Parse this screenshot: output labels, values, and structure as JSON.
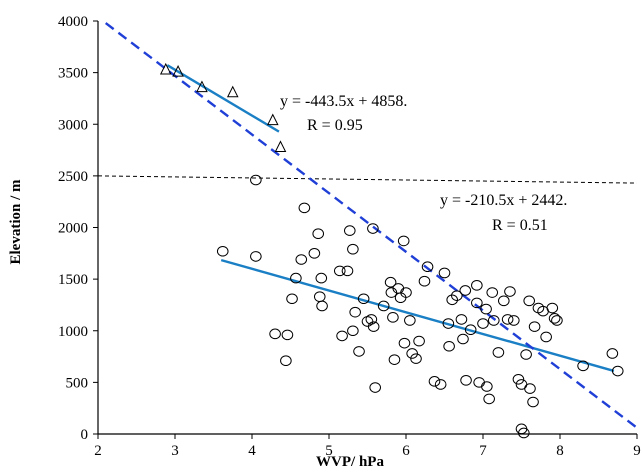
{
  "chart_data": {
    "type": "scatter",
    "xlabel": "WVP/ hPa",
    "ylabel": "Elevation / m",
    "xlim": [
      2,
      9
    ],
    "ylim": [
      0,
      4000
    ],
    "x_ticks": [
      "2",
      "3",
      "4",
      "5",
      "6",
      "7",
      "8",
      "9"
    ],
    "y_ticks": [
      "0",
      "500",
      "1000",
      "1500",
      "2000",
      "2500",
      "3000",
      "3500",
      "4000"
    ],
    "grid": false,
    "legend": "none",
    "colors": {
      "fit": "#1a7fc4",
      "envelope": "#1f3fd6",
      "markers": "#000000",
      "threshold": "#000000"
    },
    "series": [
      {
        "marker": "triangle",
        "points": [
          [
            2.88,
            3530
          ],
          [
            3.04,
            3510
          ],
          [
            3.35,
            3360
          ],
          [
            3.75,
            3310
          ],
          [
            4.27,
            3040
          ],
          [
            4.37,
            2780
          ]
        ]
      },
      {
        "marker": "circle",
        "points": [
          [
            3.62,
            1770
          ],
          [
            4.05,
            2460
          ],
          [
            4.05,
            1720
          ],
          [
            4.3,
            970
          ],
          [
            4.46,
            960
          ],
          [
            4.44,
            710
          ],
          [
            4.52,
            1310
          ],
          [
            4.57,
            1510
          ],
          [
            4.64,
            1690
          ],
          [
            4.68,
            2190
          ],
          [
            4.81,
            1750
          ],
          [
            4.86,
            1940
          ],
          [
            4.88,
            1330
          ],
          [
            4.9,
            1510
          ],
          [
            4.91,
            1240
          ],
          [
            5.14,
            1580
          ],
          [
            5.17,
            950
          ],
          [
            5.24,
            1580
          ],
          [
            5.27,
            1970
          ],
          [
            5.31,
            1790
          ],
          [
            5.31,
            1000
          ],
          [
            5.34,
            1180
          ],
          [
            5.39,
            800
          ],
          [
            5.45,
            1310
          ],
          [
            5.5,
            1090
          ],
          [
            5.55,
            1110
          ],
          [
            5.57,
            1990
          ],
          [
            5.58,
            1040
          ],
          [
            5.6,
            450
          ],
          [
            5.71,
            1240
          ],
          [
            5.8,
            1470
          ],
          [
            5.81,
            1370
          ],
          [
            5.83,
            1130
          ],
          [
            5.85,
            720
          ],
          [
            5.9,
            1410
          ],
          [
            5.93,
            1320
          ],
          [
            5.97,
            1870
          ],
          [
            5.98,
            880
          ],
          [
            6.0,
            1370
          ],
          [
            6.05,
            1100
          ],
          [
            6.08,
            780
          ],
          [
            6.13,
            730
          ],
          [
            6.17,
            900
          ],
          [
            6.24,
            1480
          ],
          [
            6.28,
            1620
          ],
          [
            6.37,
            510
          ],
          [
            6.45,
            480
          ],
          [
            6.5,
            1560
          ],
          [
            6.55,
            1070
          ],
          [
            6.56,
            850
          ],
          [
            6.6,
            1300
          ],
          [
            6.66,
            1340
          ],
          [
            6.72,
            1110
          ],
          [
            6.74,
            920
          ],
          [
            6.77,
            1390
          ],
          [
            6.78,
            520
          ],
          [
            6.84,
            1010
          ],
          [
            6.92,
            1440
          ],
          [
            6.92,
            1270
          ],
          [
            6.95,
            500
          ],
          [
            7.0,
            1070
          ],
          [
            7.04,
            1210
          ],
          [
            7.05,
            460
          ],
          [
            7.08,
            340
          ],
          [
            7.12,
            1370
          ],
          [
            7.14,
            1100
          ],
          [
            7.2,
            790
          ],
          [
            7.27,
            1290
          ],
          [
            7.32,
            1110
          ],
          [
            7.35,
            1380
          ],
          [
            7.4,
            1100
          ],
          [
            7.46,
            530
          ],
          [
            7.5,
            480
          ],
          [
            7.5,
            50
          ],
          [
            7.53,
            10
          ],
          [
            7.56,
            770
          ],
          [
            7.6,
            1290
          ],
          [
            7.61,
            440
          ],
          [
            7.65,
            310
          ],
          [
            7.67,
            1040
          ],
          [
            7.72,
            1220
          ],
          [
            7.78,
            1190
          ],
          [
            7.82,
            940
          ],
          [
            7.9,
            1220
          ],
          [
            7.93,
            1120
          ],
          [
            7.96,
            1100
          ],
          [
            8.3,
            660
          ],
          [
            8.68,
            780
          ],
          [
            8.75,
            610
          ]
        ]
      }
    ],
    "fit_lines": [
      {
        "x_range": [
          2.9,
          4.35
        ],
        "slope": -443.5,
        "intercept": 4858
      },
      {
        "x_range": [
          3.6,
          8.7
        ],
        "slope": -210.5,
        "intercept": 2442
      }
    ],
    "dashed_envelope": {
      "points": [
        [
          2.1,
          3980
        ],
        [
          9.0,
          60
        ]
      ]
    },
    "threshold_line": {
      "y": 2500,
      "points": [
        [
          2,
          2500
        ],
        [
          9,
          2430
        ]
      ]
    },
    "annotations": [
      {
        "eq": "y = -443.5x + 4858.",
        "r": "R = 0.95"
      },
      {
        "eq": "y = -210.5x + 2442.",
        "r": "R = 0.51"
      }
    ]
  }
}
